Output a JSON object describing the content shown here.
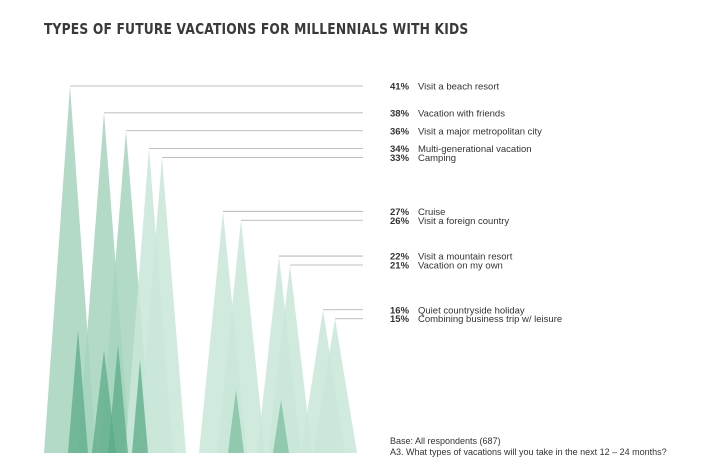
{
  "chart_data": {
    "type": "bar",
    "title": "TYPES OF FUTURE VACATIONS FOR MILLENNIALS WITH KIDS",
    "categories": [
      "Visit a beach resort",
      "Vacation with friends",
      "Visit a major metropolitan city",
      "Multi-generational vacation",
      "Camping",
      "Cruise",
      "Visit a foreign country",
      "Visit a mountain resort",
      "Vacation on my own",
      "Quiet countryside holiday",
      "Combining business trip w/ leisure"
    ],
    "values": [
      41,
      38,
      36,
      34,
      33,
      27,
      26,
      22,
      21,
      16,
      15
    ],
    "value_labels": [
      "41%",
      "38%",
      "36%",
      "34%",
      "33%",
      "27%",
      "26%",
      "22%",
      "21%",
      "16%",
      "15%"
    ],
    "unit": "%",
    "grid": false,
    "legend": "none"
  },
  "colors": {
    "light": "#c9e6d8",
    "mid": "#a5d4bd",
    "dark": "#5bab88",
    "overlap": "#7cbf9f",
    "leader": "#aaaaaa"
  },
  "footnote": {
    "base": "Base: All respondents (687)",
    "question": "A3. What types of vacations will you take in the next 12 – 24 months?"
  }
}
